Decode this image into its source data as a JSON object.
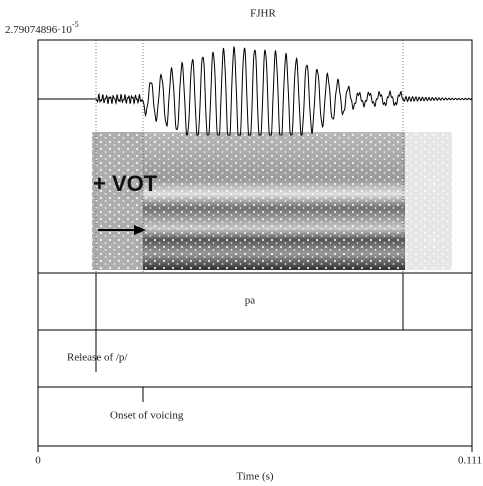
{
  "figure": {
    "title": "FJHR",
    "amplitude_label": "2.79074896·10",
    "amplitude_exponent": "-5",
    "annotation": "+ VOT",
    "tiers": [
      {
        "label": "pa"
      },
      {
        "label": "Release of /p/"
      },
      {
        "label": "Onset of voicing"
      }
    ],
    "x_axis": {
      "start": "0",
      "end": "0.111",
      "label": "Time (s)"
    }
  }
}
